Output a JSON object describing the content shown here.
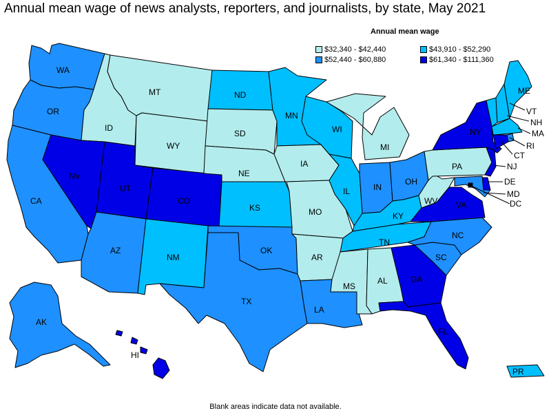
{
  "title": "Annual mean wage of news analysts, reporters, and journalists, by state, May 2021",
  "legend": {
    "title": "Annual mean wage",
    "items": [
      {
        "label": "$32,340 - $42,440",
        "color": "#b3ecec"
      },
      {
        "label": "$43,910 - $52,290",
        "color": "#00bfff"
      },
      {
        "label": "$52,440 - $60,880",
        "color": "#1e90ff"
      },
      {
        "label": "$61,340 - $111,360",
        "color": "#0000e6"
      }
    ]
  },
  "footnote": "Blank areas indicate data not available.",
  "states": [
    {
      "code": "WA",
      "class": 3
    },
    {
      "code": "OR",
      "class": 3
    },
    {
      "code": "CA",
      "class": 3
    },
    {
      "code": "ID",
      "class": 1
    },
    {
      "code": "NV",
      "class": 4
    },
    {
      "code": "MT",
      "class": 1
    },
    {
      "code": "WY",
      "class": 1
    },
    {
      "code": "UT",
      "class": 4
    },
    {
      "code": "CO",
      "class": 4
    },
    {
      "code": "AZ",
      "class": 3
    },
    {
      "code": "NM",
      "class": 2
    },
    {
      "code": "ND",
      "class": 2
    },
    {
      "code": "SD",
      "class": 1
    },
    {
      "code": "NE",
      "class": 1
    },
    {
      "code": "KS",
      "class": 2
    },
    {
      "code": "OK",
      "class": 3
    },
    {
      "code": "TX",
      "class": 3
    },
    {
      "code": "MN",
      "class": 2
    },
    {
      "code": "IA",
      "class": 1
    },
    {
      "code": "MO",
      "class": 1
    },
    {
      "code": "AR",
      "class": 1
    },
    {
      "code": "LA",
      "class": 3
    },
    {
      "code": "WI",
      "class": 2
    },
    {
      "code": "IL",
      "class": 2
    },
    {
      "code": "MI",
      "class": 1
    },
    {
      "code": "IN",
      "class": 3
    },
    {
      "code": "OH",
      "class": 3
    },
    {
      "code": "KY",
      "class": 2
    },
    {
      "code": "TN",
      "class": 2
    },
    {
      "code": "MS",
      "class": 1
    },
    {
      "code": "AL",
      "class": 1
    },
    {
      "code": "GA",
      "class": 4
    },
    {
      "code": "FL",
      "class": 4
    },
    {
      "code": "SC",
      "class": 3
    },
    {
      "code": "NC",
      "class": 3
    },
    {
      "code": "VA",
      "class": 4
    },
    {
      "code": "WV",
      "class": 1
    },
    {
      "code": "PA",
      "class": 1
    },
    {
      "code": "NY",
      "class": 4
    },
    {
      "code": "VT",
      "class": 2
    },
    {
      "code": "NH",
      "class": 2
    },
    {
      "code": "ME",
      "class": 2
    },
    {
      "code": "MA",
      "class": 2
    },
    {
      "code": "RI",
      "class": 3
    },
    {
      "code": "CT",
      "class": 4
    },
    {
      "code": "NJ",
      "class": 4
    },
    {
      "code": "DE",
      "class": 4
    },
    {
      "code": "MD",
      "class": 3
    },
    {
      "code": "DC",
      "class": 4
    },
    {
      "code": "AK",
      "class": 3
    },
    {
      "code": "HI",
      "class": 4
    },
    {
      "code": "PR",
      "class": 2
    }
  ]
}
